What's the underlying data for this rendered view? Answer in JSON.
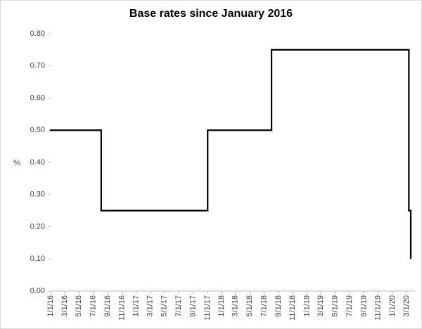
{
  "chart_data": {
    "type": "line",
    "title": "Base rates since January 2016",
    "y_label": "%",
    "step": "post",
    "x": [
      "1/1/16",
      "8/4/16",
      "11/2/17",
      "8/2/18",
      "3/11/20",
      "3/19/20"
    ],
    "series": [
      {
        "name": "Base rate",
        "color": "#000000",
        "values": [
          0.5,
          0.25,
          0.5,
          0.75,
          0.25,
          0.1
        ]
      }
    ],
    "xlim": [
      "1/1/16",
      "4/6/20"
    ],
    "xticks": [
      "1/1/16",
      "3/1/16",
      "5/1/16",
      "7/1/16",
      "9/1/16",
      "11/1/16",
      "1/1/17",
      "3/1/17",
      "5/1/17",
      "7/1/17",
      "9/1/17",
      "11/1/17",
      "1/1/18",
      "3/1/18",
      "5/1/18",
      "7/1/18",
      "9/1/18",
      "11/1/18",
      "1/1/19",
      "3/1/19",
      "5/1/19",
      "7/1/19",
      "9/1/19",
      "11/1/19",
      "1/1/20",
      "3/1/20"
    ],
    "ylim": [
      0,
      0.8
    ],
    "yticks": [
      {
        "value": 0,
        "label": "0.00"
      },
      {
        "value": 0.1,
        "label": "0.10"
      },
      {
        "value": 0.2,
        "label": "0.20"
      },
      {
        "value": 0.3,
        "label": "0.30"
      },
      {
        "value": 0.4,
        "label": "0.40"
      },
      {
        "value": 0.5,
        "label": "0.50"
      },
      {
        "value": 0.6,
        "label": "0.60"
      },
      {
        "value": 0.7,
        "label": "0.70"
      },
      {
        "value": 0.8,
        "label": "0.80"
      }
    ]
  }
}
